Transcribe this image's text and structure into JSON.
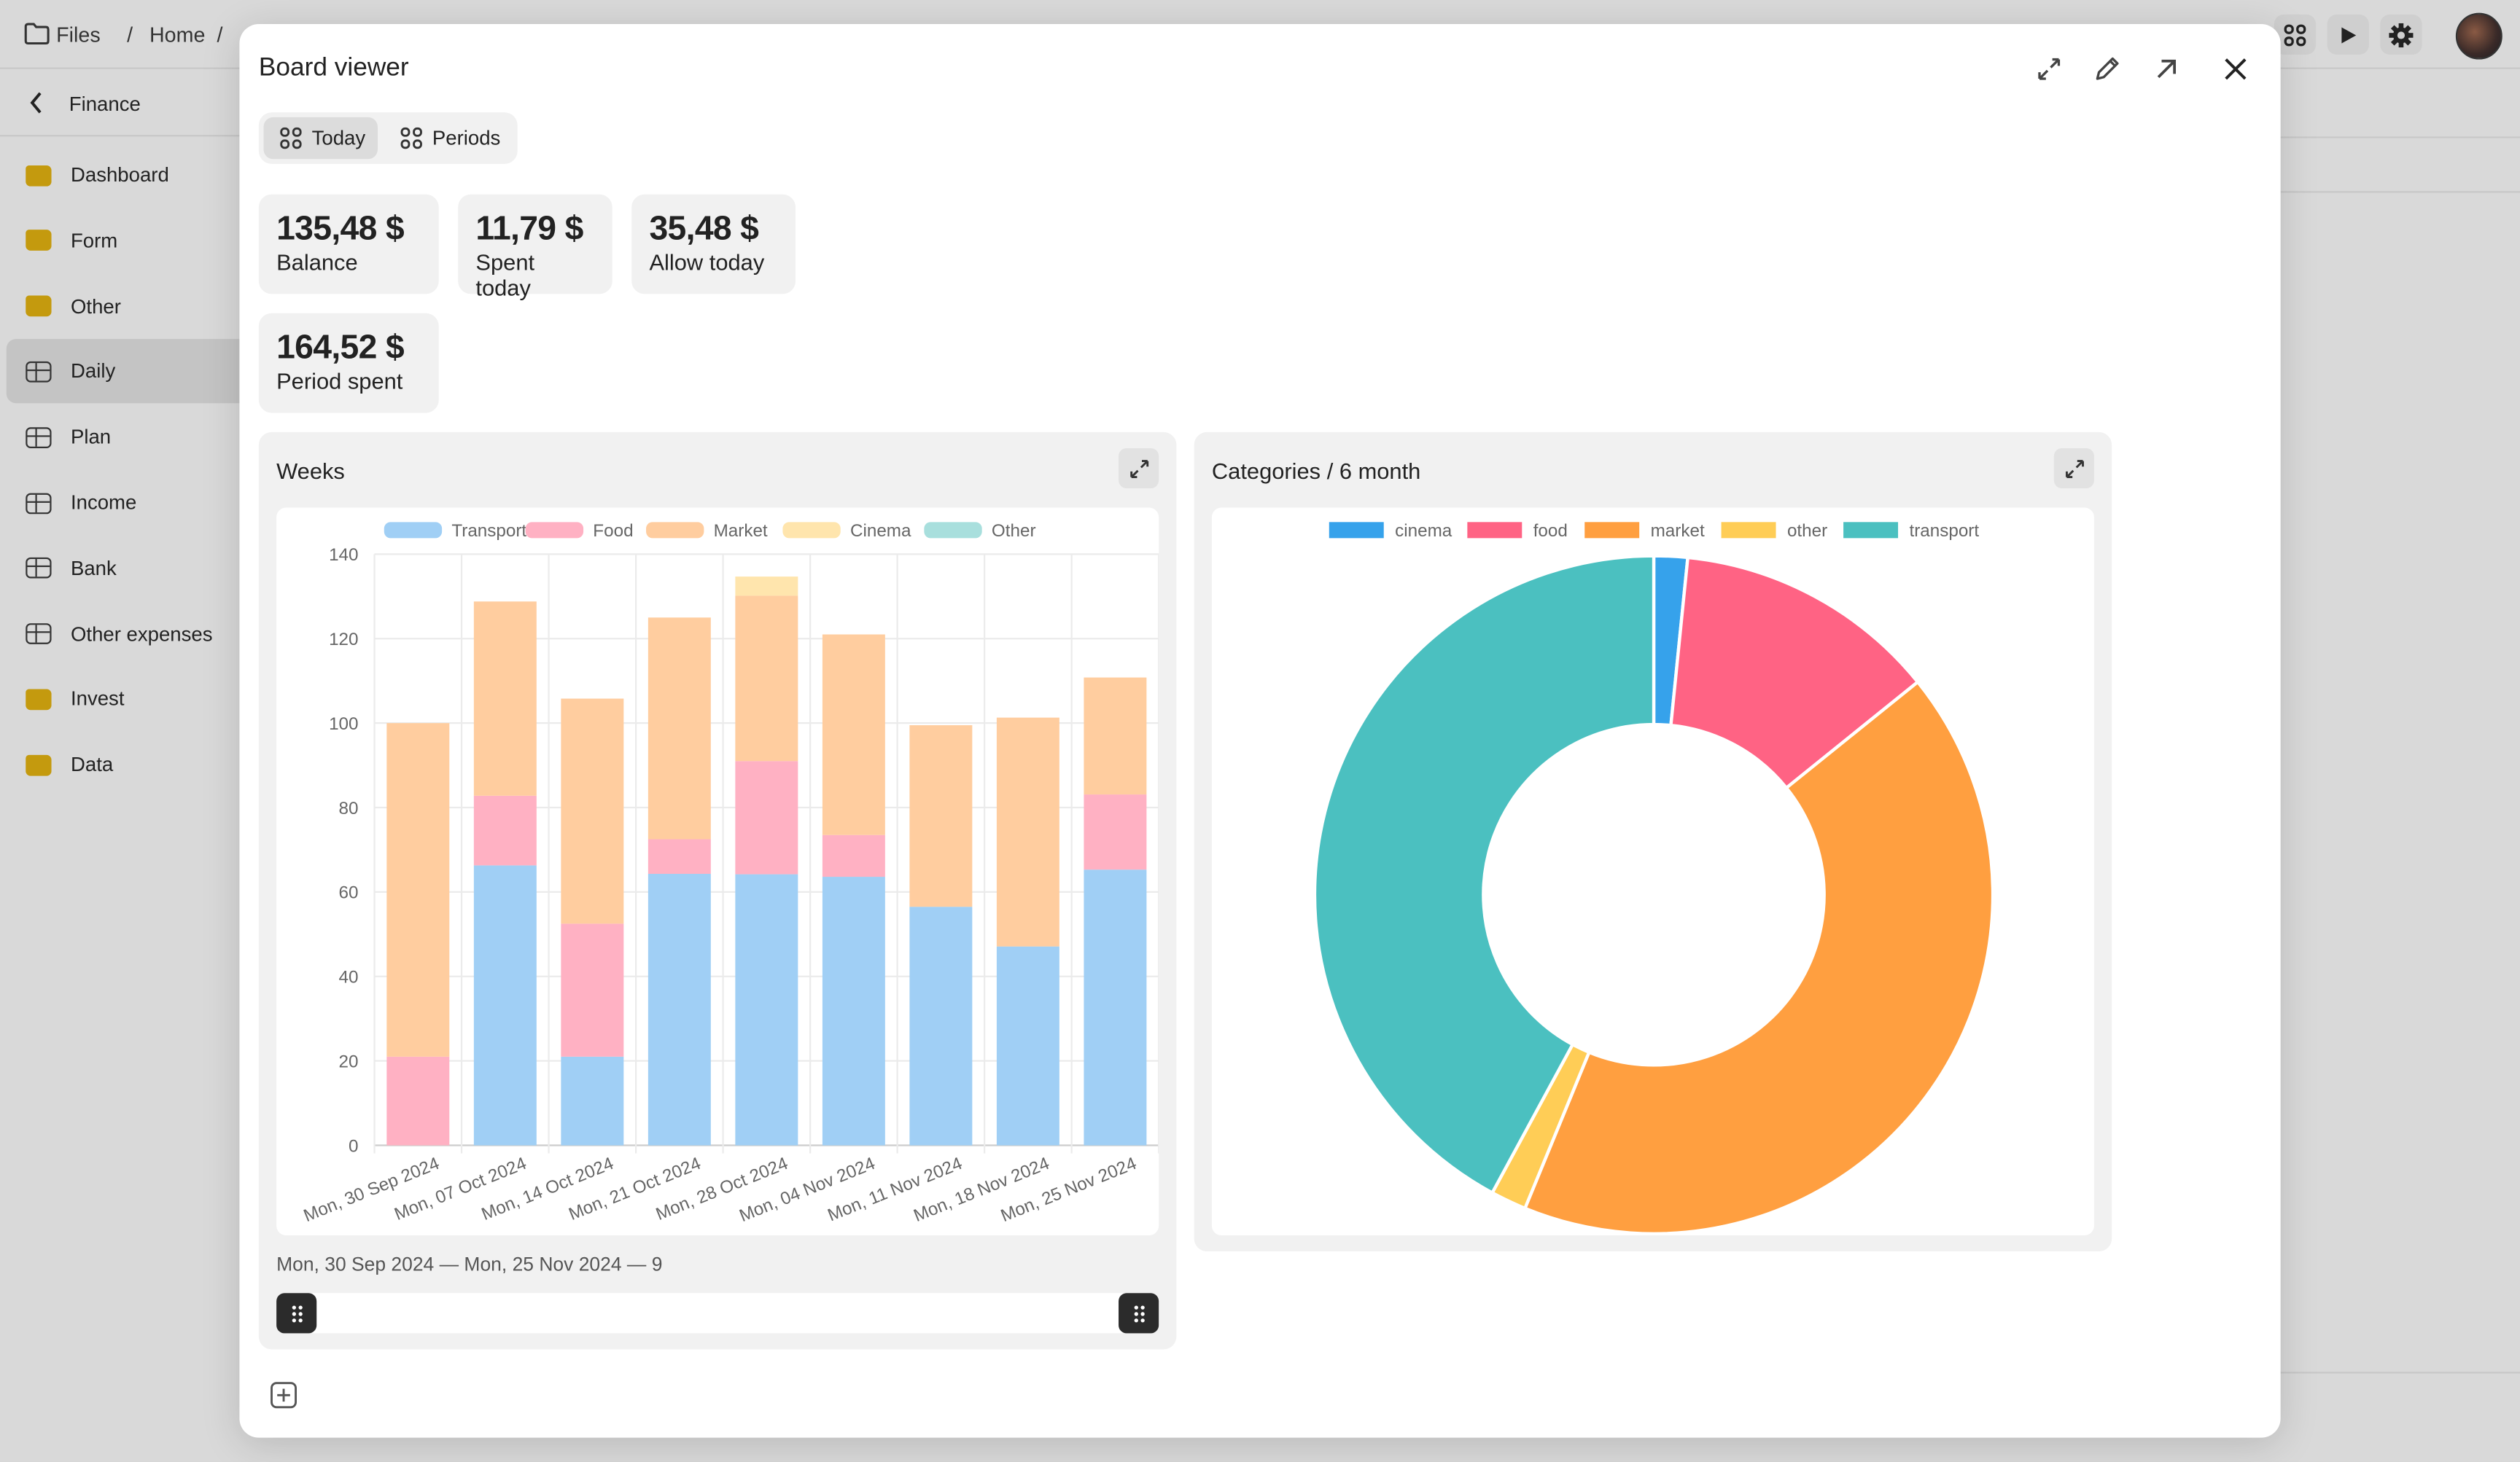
{
  "topbar": {
    "breadcrumb": [
      "Files",
      "Home"
    ],
    "separator": "/"
  },
  "sidebar": {
    "back_label": "Finance",
    "items": [
      {
        "label": "Dashboard",
        "icon": "folder-icon"
      },
      {
        "label": "Form",
        "icon": "folder-icon"
      },
      {
        "label": "Other",
        "icon": "folder-icon"
      },
      {
        "label": "Daily",
        "icon": "table-icon",
        "active": true
      },
      {
        "label": "Plan",
        "icon": "table-icon"
      },
      {
        "label": "Income",
        "icon": "table-icon"
      },
      {
        "label": "Bank",
        "icon": "table-icon"
      },
      {
        "label": "Other expenses",
        "icon": "table-icon"
      },
      {
        "label": "Invest",
        "icon": "folder-icon"
      },
      {
        "label": "Data",
        "icon": "folder-icon"
      }
    ]
  },
  "modal": {
    "title": "Board viewer",
    "tabs": [
      {
        "label": "Today",
        "active": true
      },
      {
        "label": "Periods"
      }
    ]
  },
  "stats": [
    {
      "value": "135,48 $",
      "label": "Balance"
    },
    {
      "value": "11,79 $",
      "label": "Spent today"
    },
    {
      "value": "35,48 $",
      "label": "Allow today"
    },
    {
      "value": "164,52 $",
      "label": "Period spent"
    }
  ],
  "weeks_card": {
    "title": "Weeks",
    "range_text": "Mon, 30 Sep 2024 — Mon, 25 Nov 2024 — 9"
  },
  "categories_card": {
    "title": "Categories / 6 month"
  },
  "chart_data": [
    {
      "type": "bar",
      "stacked": true,
      "title": "Weeks",
      "ylim": [
        0,
        140
      ],
      "yticks": [
        0,
        20,
        40,
        60,
        80,
        100,
        120,
        140
      ],
      "grid": true,
      "legend": "top",
      "categories": [
        "Mon, 30 Sep 2024",
        "Mon, 07 Oct 2024",
        "Mon, 14 Oct 2024",
        "Mon, 21 Oct 2024",
        "Mon, 28 Oct 2024",
        "Mon, 04 Nov 2024",
        "Mon, 11 Nov 2024",
        "Mon, 18 Nov 2024",
        "Mon, 25 Nov 2024"
      ],
      "series": [
        {
          "name": "Transport",
          "color": "#a0cff5",
          "values": [
            0,
            66.3,
            21,
            64.3,
            64.2,
            63.6,
            56.5,
            47.1,
            65.3
          ]
        },
        {
          "name": "Food",
          "color": "#ffb1c3",
          "values": [
            21,
            16.5,
            31.5,
            8.2,
            26.8,
            9.9,
            0,
            0,
            17.8
          ]
        },
        {
          "name": "Market",
          "color": "#ffcd9f",
          "values": [
            79,
            46,
            53.3,
            52.5,
            39.2,
            47.5,
            43,
            54.2,
            27.7
          ]
        },
        {
          "name": "Cinema",
          "color": "#ffe5ad",
          "values": [
            0,
            0,
            0,
            0,
            4.5,
            0,
            0,
            0,
            0
          ]
        },
        {
          "name": "Other",
          "color": "#a8dfdd",
          "values": [
            0,
            0,
            0,
            0,
            0,
            0,
            0,
            0,
            0
          ]
        }
      ]
    },
    {
      "type": "pie",
      "donut": true,
      "title": "Categories / 6 month",
      "legend": "top",
      "labels": [
        "cinema",
        "food",
        "market",
        "other",
        "transport"
      ],
      "values": [
        1.6,
        12.6,
        42.0,
        1.7,
        42.1
      ],
      "colors": [
        "#36a2eb",
        "#ff6384",
        "#ff9f40",
        "#ffcd56",
        "#4bc0c0"
      ]
    }
  ]
}
